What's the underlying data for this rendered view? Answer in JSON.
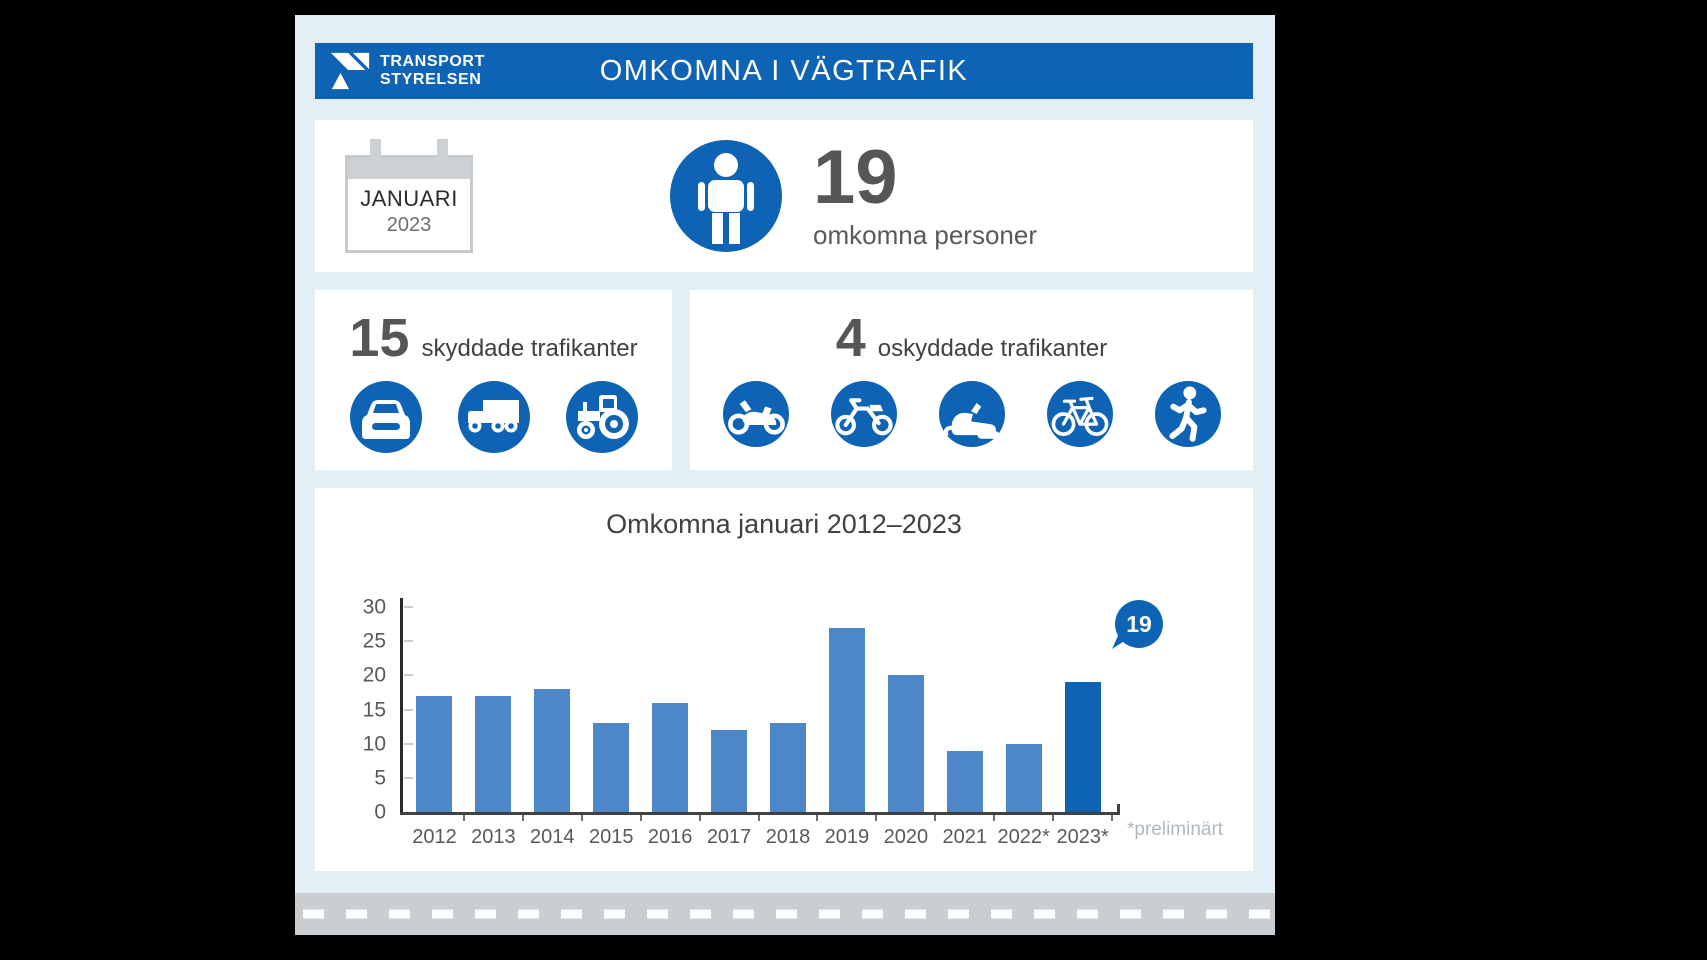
{
  "colors": {
    "accent-blue": "#0f63b5",
    "bar-blue": "#4e87c7",
    "bg-blue": "#e2eff5",
    "road-gray": "#caced1"
  },
  "header": {
    "logo_line1": "TRANSPORT",
    "logo_line2": "STYRELSEN",
    "title": "OMKOMNA I VÄGTRAFIK"
  },
  "summary": {
    "calendar_month": "JANUARI",
    "calendar_year": "2023",
    "count": "19",
    "count_label": "omkomna personer"
  },
  "protected": {
    "count": "15",
    "label": "skyddade trafikanter",
    "icons": [
      "car-icon",
      "truck-icon",
      "tractor-icon"
    ]
  },
  "unprotected": {
    "count": "4",
    "label": "oskyddade trafikanter",
    "icons": [
      "motorcycle-icon",
      "moped-icon",
      "snowmobile-icon",
      "bicycle-icon",
      "pedestrian-icon"
    ]
  },
  "chart_data": {
    "type": "bar",
    "title": "Omkomna januari 2012–2023",
    "categories": [
      "2012",
      "2013",
      "2014",
      "2015",
      "2016",
      "2017",
      "2018",
      "2019",
      "2020",
      "2021",
      "2022*",
      "2023*"
    ],
    "values": [
      17,
      17,
      18,
      13,
      16,
      12,
      13,
      27,
      20,
      9,
      10,
      19
    ],
    "highlight_index": 11,
    "callout_value": "19",
    "footnote": "*preliminärt",
    "xlabel": "",
    "ylabel": "",
    "ylim": [
      0,
      30
    ],
    "yticks": [
      0,
      5,
      10,
      15,
      20,
      25,
      30
    ],
    "grid": false,
    "legend": "none"
  }
}
